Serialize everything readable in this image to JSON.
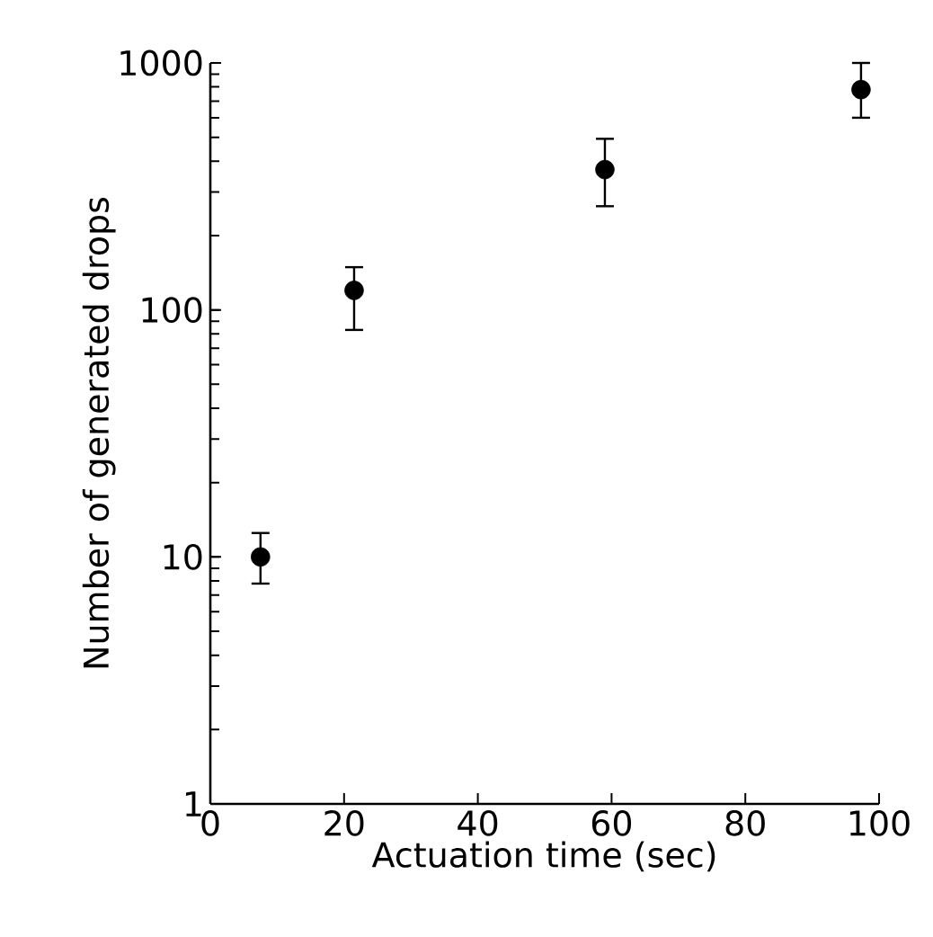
{
  "chart_data": {
    "type": "scatter",
    "xlabel": "Actuation time (sec)",
    "ylabel": "Number of generated drops",
    "x": [
      7.5,
      21.5,
      59,
      97.3
    ],
    "values": [
      10,
      120,
      370,
      780
    ],
    "errors": [
      [
        7.8,
        12.5
      ],
      [
        83,
        149
      ],
      [
        263,
        493
      ],
      [
        600,
        1000
      ]
    ],
    "color": "#000000",
    "marker": "circle",
    "log": "y",
    "xlim": [
      0,
      100
    ],
    "xticks": [
      0,
      20,
      40,
      60,
      80,
      100
    ],
    "ylim": [
      1,
      1000
    ],
    "yticks": [
      1,
      10,
      100,
      1000
    ],
    "grid": false
  }
}
